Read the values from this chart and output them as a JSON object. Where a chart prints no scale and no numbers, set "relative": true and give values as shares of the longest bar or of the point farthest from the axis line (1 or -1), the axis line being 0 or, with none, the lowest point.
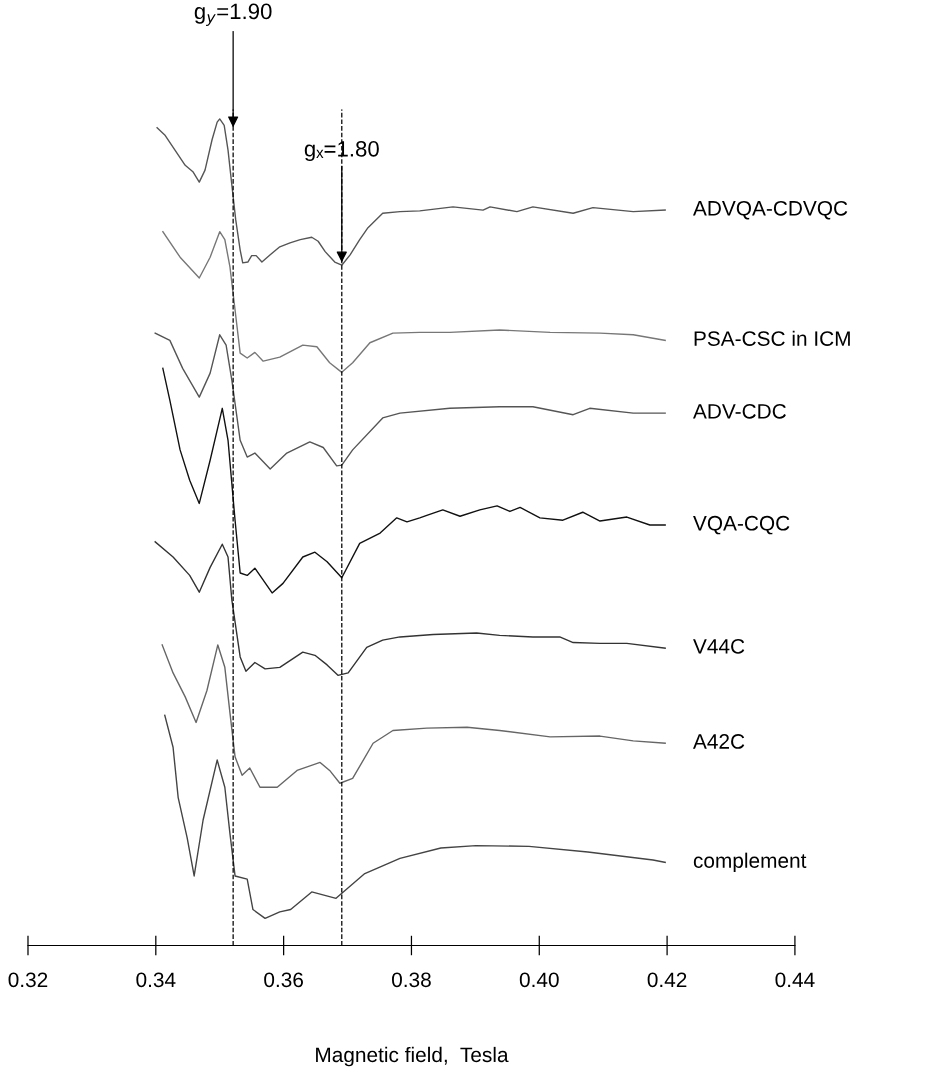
{
  "chart_data": {
    "type": "line",
    "relative": true,
    "xlabel": "Magnetic field,  Tesla",
    "xlim": [
      0.32,
      0.44
    ],
    "xticks": [
      0.32,
      0.34,
      0.36,
      0.38,
      {
        "value": 0.4,
        "label": "0.40"
      },
      0.42,
      0.44
    ],
    "tick_labels": "x",
    "grid": false,
    "legend": false,
    "marker": "none",
    "line_style": "solid",
    "ref_lines": [
      {
        "axis": "x",
        "value": 0.3521,
        "color": "#000000",
        "line_style": "dashed"
      },
      {
        "axis": "x",
        "value": 0.3691,
        "color": "#000000",
        "line_style": "dashed"
      }
    ],
    "annotations": [
      {
        "text": "g$_{y}$=1.90",
        "x": 0.3521,
        "y": 0.986
      },
      {
        "text": "gₓ=1.80",
        "x": 0.3691,
        "y": 0.817
      }
    ],
    "series": [
      {
        "name": "ADVQA-CDVQC",
        "color": "#555555",
        "x": [
          0.3402,
          0.3414,
          0.343,
          0.3446,
          0.3458,
          0.3468,
          0.3477,
          0.3488,
          0.3496,
          0.35,
          0.3507,
          0.3513,
          0.3519,
          0.3525,
          0.3532,
          0.3536,
          0.3544,
          0.355,
          0.3557,
          0.3566,
          0.3579,
          0.3594,
          0.361,
          0.3626,
          0.3644,
          0.3654,
          0.3665,
          0.368,
          0.3691,
          0.3704,
          0.3719,
          0.3732,
          0.3755,
          0.3782,
          0.3813,
          0.3865,
          0.3912,
          0.3923,
          0.3965,
          0.399,
          0.4053,
          0.4084,
          0.4147,
          0.4197
        ],
        "values": [
          0.989,
          0.98,
          0.961,
          0.942,
          0.934,
          0.921,
          0.936,
          0.974,
          0.996,
          1.0,
          0.992,
          0.961,
          0.917,
          0.874,
          0.836,
          0.82,
          0.821,
          0.829,
          0.829,
          0.821,
          0.83,
          0.84,
          0.845,
          0.849,
          0.852,
          0.847,
          0.834,
          0.821,
          0.817,
          0.83,
          0.849,
          0.864,
          0.882,
          0.884,
          0.885,
          0.89,
          0.886,
          0.89,
          0.884,
          0.89,
          0.882,
          0.889,
          0.884,
          0.886
        ]
      },
      {
        "name": "PSA-CSC in ICM",
        "color": "#777777",
        "x": [
          0.3411,
          0.3438,
          0.3468,
          0.3485,
          0.35,
          0.3508,
          0.3516,
          0.3524,
          0.3532,
          0.3543,
          0.3555,
          0.3568,
          0.3594,
          0.363,
          0.3652,
          0.3672,
          0.3691,
          0.3708,
          0.3735,
          0.3771,
          0.3813,
          0.386,
          0.3938,
          0.4017,
          0.4095,
          0.4147,
          0.4197
        ],
        "values": [
          0.859,
          0.827,
          0.801,
          0.827,
          0.859,
          0.849,
          0.815,
          0.761,
          0.707,
          0.701,
          0.708,
          0.697,
          0.702,
          0.717,
          0.715,
          0.695,
          0.683,
          0.695,
          0.72,
          0.732,
          0.733,
          0.733,
          0.736,
          0.733,
          0.732,
          0.73,
          0.723
        ]
      },
      {
        "name": "ADV-CDC",
        "color": "#555555",
        "x": [
          0.3399,
          0.3422,
          0.3442,
          0.3468,
          0.3485,
          0.35,
          0.351,
          0.3519,
          0.3532,
          0.3543,
          0.3555,
          0.3579,
          0.3605,
          0.3641,
          0.3662,
          0.3683,
          0.3691,
          0.3708,
          0.3755,
          0.3782,
          0.386,
          0.3938,
          0.399,
          0.4053,
          0.4079,
          0.4147,
          0.4197
        ],
        "values": [
          0.732,
          0.723,
          0.688,
          0.652,
          0.682,
          0.73,
          0.717,
          0.673,
          0.598,
          0.577,
          0.582,
          0.562,
          0.582,
          0.596,
          0.589,
          0.566,
          0.567,
          0.586,
          0.626,
          0.632,
          0.638,
          0.64,
          0.64,
          0.63,
          0.638,
          0.632,
          0.632
        ]
      },
      {
        "name": "VQA-CQC",
        "color": "#111111",
        "x": [
          0.3411,
          0.3422,
          0.3438,
          0.3453,
          0.3468,
          0.3485,
          0.3504,
          0.3513,
          0.3524,
          0.3532,
          0.3543,
          0.3555,
          0.3582,
          0.3599,
          0.363,
          0.3649,
          0.3668,
          0.3691,
          0.3719,
          0.3751,
          0.3777,
          0.3793,
          0.3813,
          0.3824,
          0.3849,
          0.3876,
          0.3907,
          0.3934,
          0.3954,
          0.397,
          0.4001,
          0.4037,
          0.4068,
          0.4095,
          0.4137,
          0.4173,
          0.4197
        ],
        "values": [
          0.688,
          0.648,
          0.586,
          0.548,
          0.519,
          0.573,
          0.638,
          0.598,
          0.498,
          0.432,
          0.429,
          0.438,
          0.407,
          0.419,
          0.452,
          0.458,
          0.446,
          0.426,
          0.469,
          0.482,
          0.501,
          0.496,
          0.501,
          0.504,
          0.511,
          0.503,
          0.511,
          0.516,
          0.509,
          0.514,
          0.501,
          0.498,
          0.508,
          0.497,
          0.502,
          0.492,
          0.492
        ]
      },
      {
        "name": "V44C",
        "color": "#333333",
        "x": [
          0.3399,
          0.3427,
          0.3453,
          0.3468,
          0.3485,
          0.3504,
          0.3513,
          0.3519,
          0.3532,
          0.3541,
          0.3555,
          0.3571,
          0.3594,
          0.363,
          0.3649,
          0.3668,
          0.3685,
          0.3701,
          0.373,
          0.3755,
          0.3782,
          0.3834,
          0.3902,
          0.3938,
          0.399,
          0.4032,
          0.4053,
          0.4095,
          0.4137,
          0.4197
        ],
        "values": [
          0.471,
          0.452,
          0.429,
          0.408,
          0.439,
          0.468,
          0.452,
          0.398,
          0.327,
          0.309,
          0.32,
          0.312,
          0.314,
          0.333,
          0.329,
          0.317,
          0.304,
          0.307,
          0.339,
          0.348,
          0.352,
          0.355,
          0.357,
          0.354,
          0.352,
          0.352,
          0.345,
          0.344,
          0.344,
          0.338
        ]
      },
      {
        "name": "A42C",
        "color": "#666666",
        "x": [
          0.341,
          0.3427,
          0.3446,
          0.3463,
          0.348,
          0.3497,
          0.3508,
          0.3516,
          0.3524,
          0.3535,
          0.3547,
          0.3563,
          0.359,
          0.3621,
          0.3657,
          0.3672,
          0.3688,
          0.3708,
          0.374,
          0.3771,
          0.3824,
          0.3887,
          0.3938,
          0.4017,
          0.4095,
          0.4147,
          0.4197
        ],
        "values": [
          0.342,
          0.307,
          0.277,
          0.245,
          0.285,
          0.342,
          0.314,
          0.257,
          0.202,
          0.179,
          0.188,
          0.164,
          0.164,
          0.185,
          0.195,
          0.185,
          0.169,
          0.175,
          0.219,
          0.235,
          0.238,
          0.239,
          0.235,
          0.227,
          0.228,
          0.222,
          0.219
        ]
      },
      {
        "name": "complement",
        "color": "#444444",
        "x": [
          0.3414,
          0.3427,
          0.3435,
          0.3449,
          0.346,
          0.3474,
          0.3496,
          0.3508,
          0.3516,
          0.3524,
          0.3543,
          0.3552,
          0.3571,
          0.3594,
          0.3611,
          0.3644,
          0.3682,
          0.3727,
          0.3782,
          0.3846,
          0.3901,
          0.3984,
          0.4076,
          0.4178,
          0.4197
        ],
        "values": [
          0.254,
          0.214,
          0.151,
          0.101,
          0.053,
          0.123,
          0.198,
          0.164,
          0.106,
          0.053,
          0.049,
          0.011,
          0.0,
          0.008,
          0.011,
          0.033,
          0.025,
          0.056,
          0.075,
          0.088,
          0.091,
          0.09,
          0.083,
          0.073,
          0.07
        ]
      }
    ]
  }
}
